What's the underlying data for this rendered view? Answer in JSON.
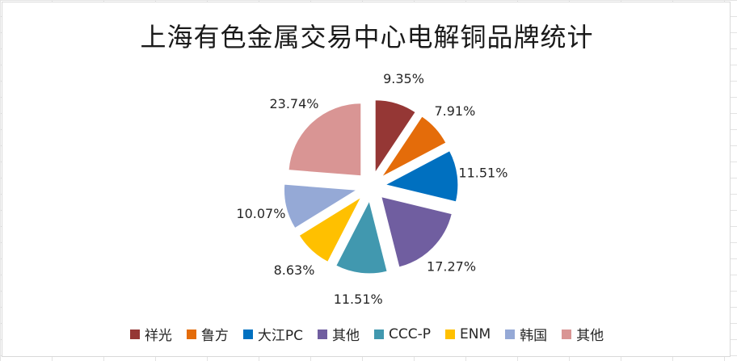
{
  "chart_data": {
    "type": "pie",
    "title": "上海有色金属交易中心电解铜品牌统计",
    "exploded": true,
    "start_angle_deg": 0,
    "direction": "clockwise",
    "slices": [
      {
        "label": "祥光",
        "value": 9.35,
        "text": "9.35%",
        "color": "#953735"
      },
      {
        "label": "鲁方",
        "value": 7.91,
        "text": "7.91%",
        "color": "#E46C0A"
      },
      {
        "label": "大江PC",
        "value": 11.51,
        "text": "11.51%",
        "color": "#0070C0"
      },
      {
        "label": "其他",
        "value": 17.27,
        "text": "17.27%",
        "color": "#705EA0"
      },
      {
        "label": "CCC-P",
        "value": 11.51,
        "text": "11.51%",
        "color": "#4198AF"
      },
      {
        "label": "ENM",
        "value": 8.63,
        "text": "8.63%",
        "color": "#FFC000"
      },
      {
        "label": "韩国",
        "value": 10.07,
        "text": "10.07%",
        "color": "#95A9D6"
      },
      {
        "label": "其他",
        "value": 23.74,
        "text": "23.74%",
        "color": "#D99594"
      }
    ],
    "legend_position": "bottom"
  }
}
